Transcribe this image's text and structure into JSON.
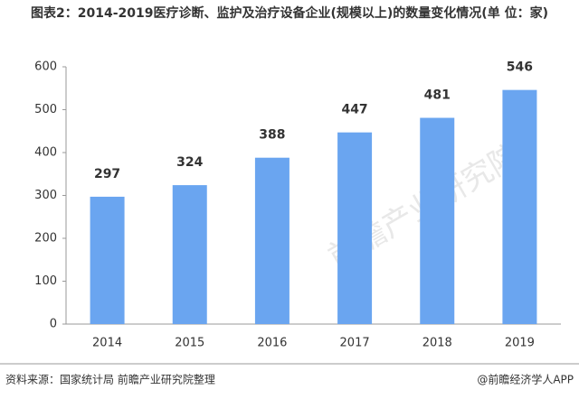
{
  "chart_data": {
    "type": "bar",
    "title": "图表2：2014-2019医疗诊断、监护及治疗设备企业(规模以上)的数量变化情况(单 位：家)",
    "categories": [
      "2014",
      "2015",
      "2016",
      "2017",
      "2018",
      "2019"
    ],
    "values": [
      297,
      324,
      388,
      447,
      481,
      546
    ],
    "color": "#6aa5f0",
    "ylim": [
      0,
      600
    ],
    "yticks": [
      0,
      100,
      200,
      300,
      400,
      500,
      600
    ],
    "grid": false,
    "source": "资料来源：国家统计局 前瞻产业研究院整理",
    "credit": "@前瞻经济学人APP",
    "watermark": "前瞻产业研究院"
  }
}
